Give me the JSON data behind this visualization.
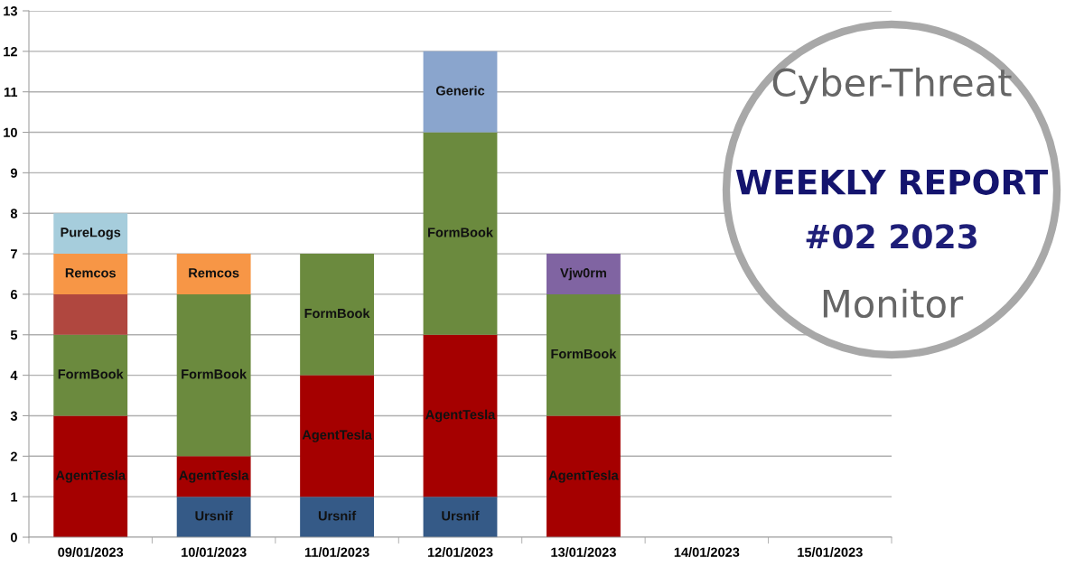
{
  "chart_data": {
    "type": "bar",
    "stacked": true,
    "title": "WEEKLY REPORT",
    "subtitle": "#02 2023",
    "annotations": [
      "Cyber-Threat",
      "Monitor"
    ],
    "categories": [
      "09/01/2023",
      "10/01/2023",
      "11/01/2023",
      "12/01/2023",
      "13/01/2023",
      "14/01/2023",
      "15/01/2023"
    ],
    "series": [
      {
        "name": "Ursnif",
        "color": "#355a87",
        "values": [
          null,
          1,
          1,
          1,
          null,
          null,
          null
        ]
      },
      {
        "name": "AgentTesla",
        "color": "#a50000",
        "values": [
          3,
          1,
          3,
          4,
          3,
          null,
          null
        ]
      },
      {
        "name": "FormBook",
        "color": "#6b8a3e",
        "values": [
          2,
          4,
          3,
          5,
          3,
          null,
          null
        ]
      },
      {
        "color": "#b0473f",
        "values": [
          1,
          null,
          null,
          null,
          null,
          null,
          null
        ]
      },
      {
        "name": "Remcos",
        "color": "#f79646",
        "values": [
          1,
          1,
          null,
          null,
          null,
          null,
          null
        ]
      },
      {
        "name": "PureLogs",
        "color": "#a6cddc",
        "values": [
          1,
          null,
          null,
          null,
          null,
          null,
          null
        ]
      },
      {
        "name": "Generic",
        "color": "#8aa5cd",
        "values": [
          null,
          null,
          null,
          2,
          null,
          null,
          null
        ]
      },
      {
        "name": "Vjw0rm",
        "color": "#8064a2",
        "values": [
          null,
          null,
          null,
          null,
          1,
          null,
          null
        ]
      }
    ],
    "ylim": [
      0,
      13
    ],
    "yticks": [
      0,
      1,
      2,
      3,
      4,
      5,
      6,
      7,
      8,
      9,
      10,
      11,
      12,
      13
    ],
    "grid": "y",
    "legend": false
  }
}
